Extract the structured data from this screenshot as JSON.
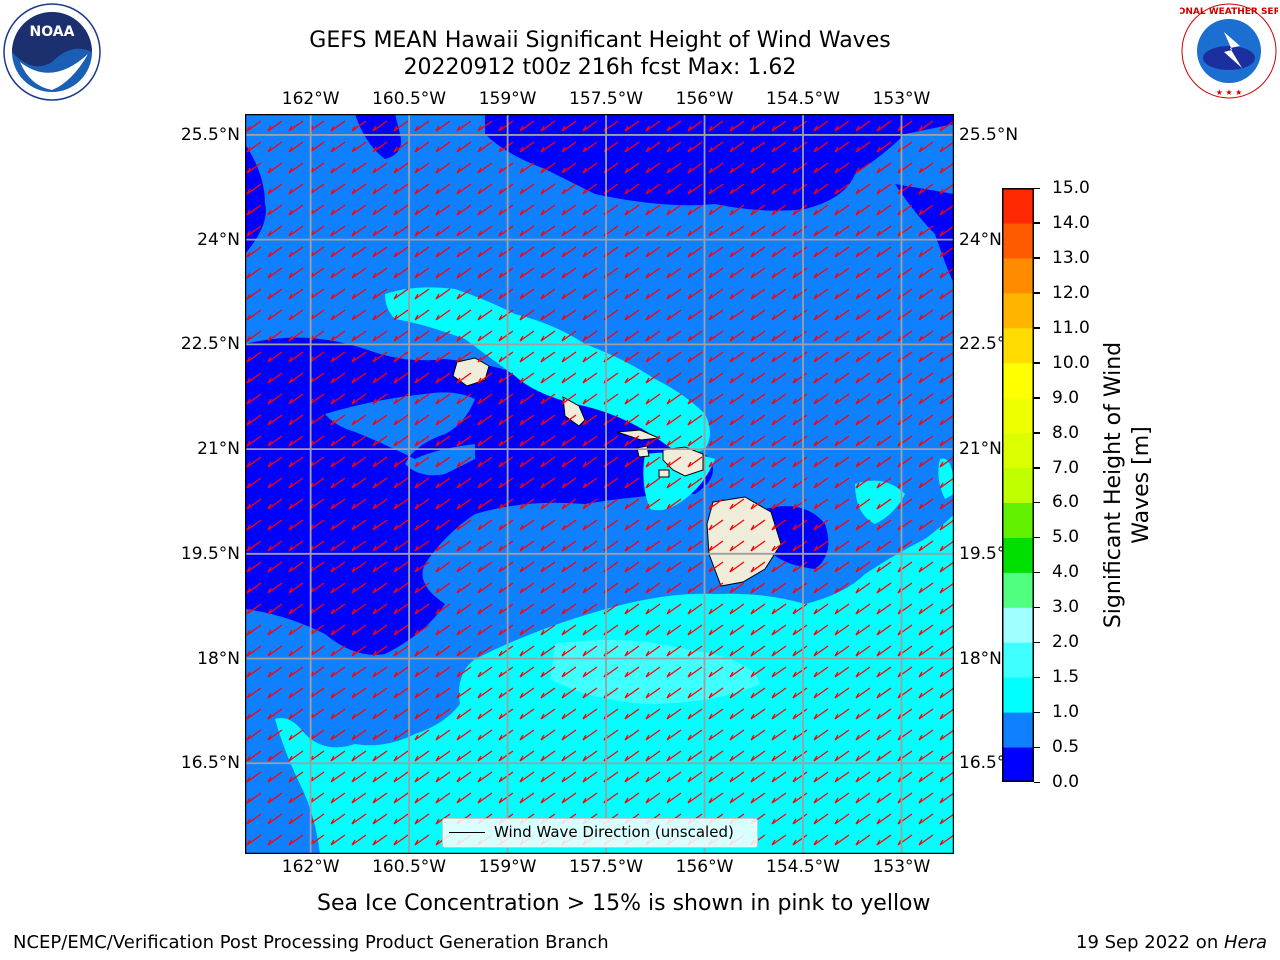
{
  "title": {
    "line1": "GEFS MEAN Hawaii Significant Height of Wind Waves",
    "line2": "20220912 t00z 216h fcst   Max: 1.62"
  },
  "map": {
    "lon_ticks": [
      "162°W",
      "160.5°W",
      "159°W",
      "157.5°W",
      "156°W",
      "154.5°W",
      "153°W"
    ],
    "lat_ticks": [
      "25.5°N",
      "24°N",
      "22.5°N",
      "21°N",
      "19.5°N",
      "18°N",
      "16.5°N"
    ],
    "lon_range": [
      -163,
      -152.2
    ],
    "lat_range": [
      15.2,
      25.8
    ],
    "islands": [
      "Kauai",
      "Oahu",
      "Molokai",
      "Lanai",
      "Maui",
      "Kahoolawe",
      "Hawaii"
    ],
    "arrow_color": "#ff0000",
    "grid_color": "#a0a0a0"
  },
  "colorbar": {
    "title": "Significant Height of Wind Waves [m]",
    "ticks": [
      "15.0",
      "14.0",
      "13.0",
      "12.0",
      "11.0",
      "10.0",
      "9.0",
      "8.0",
      "7.0",
      "6.0",
      "5.0",
      "4.0",
      "3.0",
      "2.0",
      "1.5",
      "1.0",
      "0.5",
      "0.0"
    ],
    "levels": [
      0.0,
      0.5,
      1.0,
      1.5,
      2.0,
      3.0,
      4.0,
      5.0,
      6.0,
      7.0,
      8.0,
      9.0,
      10.0,
      11.0,
      12.0,
      13.0,
      14.0,
      15.0
    ],
    "colors": [
      "#0000ff",
      "#0f80ff",
      "#00ffff",
      "#40ffff",
      "#a0ffff",
      "#50ff80",
      "#00e000",
      "#60f000",
      "#c0ff00",
      "#dcff00",
      "#f0ff00",
      "#ffff00",
      "#ffdc00",
      "#ffb400",
      "#ff8c00",
      "#ff5a00",
      "#ff2800"
    ]
  },
  "legend": {
    "label": "Wind Wave Direction (unscaled)"
  },
  "subtitle": "Sea Ice Concentration > 15% is shown in pink to yellow",
  "footer": {
    "left": "NCEP/EMC/Verification Post Processing Product Generation Branch",
    "right_prefix": "19 Sep 2022 on ",
    "right_machine": "Hera"
  },
  "logos": {
    "left_text": "NOAA",
    "right_text": "NATIONAL WEATHER SERVICE"
  }
}
